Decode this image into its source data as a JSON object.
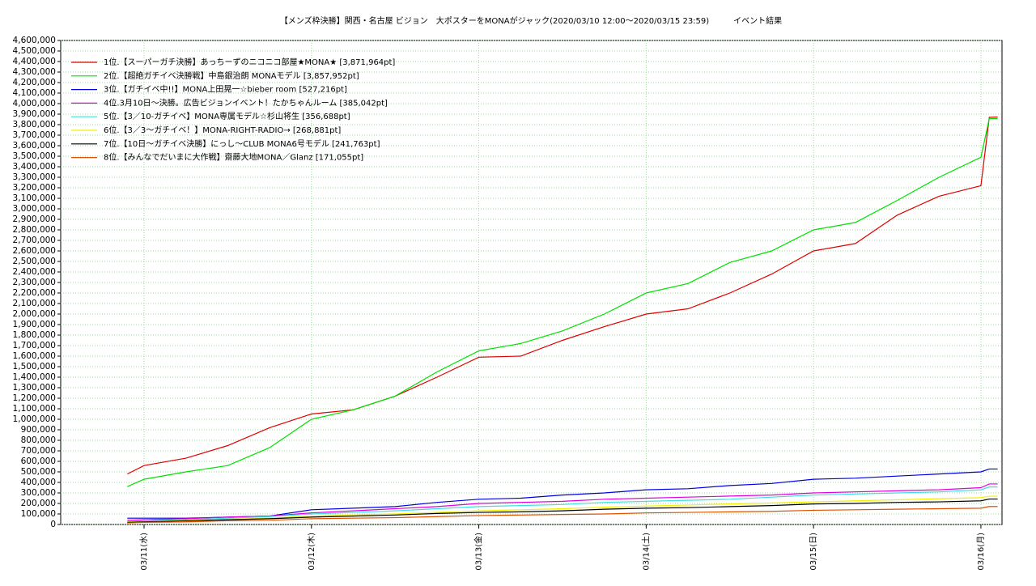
{
  "chart_data": {
    "type": "line",
    "title": "【メンズ枠決勝】関西・名古屋 ビジョン　大ポスターをMONAがジャック(2020/03/10 12:00〜2020/03/15 23:59)　　　イベント結果",
    "x": [
      0.9,
      1.0,
      1.25,
      1.5,
      1.75,
      2.0,
      2.25,
      2.5,
      2.75,
      3.0,
      3.25,
      3.5,
      3.75,
      4.0,
      4.25,
      4.5,
      4.75,
      5.0,
      5.25,
      5.5,
      5.75,
      6.0,
      6.05,
      6.1
    ],
    "xlim": [
      0.502,
      6.126
    ],
    "xticks": [
      {
        "value": 1,
        "label": "03/11(水)"
      },
      {
        "value": 2,
        "label": "03/12(木)"
      },
      {
        "value": 3,
        "label": "03/13(金)"
      },
      {
        "value": 4,
        "label": "03/14(土)"
      },
      {
        "value": 5,
        "label": "03/15(日)"
      },
      {
        "value": 6,
        "label": "03/16(月)"
      }
    ],
    "ylim": [
      0,
      4600000
    ],
    "yticks": [
      0,
      {
        "value": 100000,
        "label": "100,000"
      },
      {
        "value": 200000,
        "label": "200,000"
      },
      {
        "value": 300000,
        "label": "300,000"
      },
      {
        "value": 400000,
        "label": "400,000"
      },
      {
        "value": 500000,
        "label": "500,000"
      },
      {
        "value": 600000,
        "label": "600,000"
      },
      {
        "value": 700000,
        "label": "700,000"
      },
      {
        "value": 800000,
        "label": "800,000"
      },
      {
        "value": 900000,
        "label": "900,000"
      },
      {
        "value": 1000000,
        "label": "1,000,000"
      },
      {
        "value": 1100000,
        "label": "1,100,000"
      },
      {
        "value": 1200000,
        "label": "1,200,000"
      },
      {
        "value": 1300000,
        "label": "1,300,000"
      },
      {
        "value": 1400000,
        "label": "1,400,000"
      },
      {
        "value": 1500000,
        "label": "1,500,000"
      },
      {
        "value": 1600000,
        "label": "1,600,000"
      },
      {
        "value": 1700000,
        "label": "1,700,000"
      },
      {
        "value": 1800000,
        "label": "1,800,000"
      },
      {
        "value": 1900000,
        "label": "1,900,000"
      },
      {
        "value": 2000000,
        "label": "2,000,000"
      },
      {
        "value": 2100000,
        "label": "2,100,000"
      },
      {
        "value": 2200000,
        "label": "2,200,000"
      },
      {
        "value": 2300000,
        "label": "2,300,000"
      },
      {
        "value": 2400000,
        "label": "2,400,000"
      },
      {
        "value": 2500000,
        "label": "2,500,000"
      },
      {
        "value": 2600000,
        "label": "2,600,000"
      },
      {
        "value": 2700000,
        "label": "2,700,000"
      },
      {
        "value": 2800000,
        "label": "2,800,000"
      },
      {
        "value": 2900000,
        "label": "2,900,000"
      },
      {
        "value": 3000000,
        "label": "3,000,000"
      },
      {
        "value": 3100000,
        "label": "3,100,000"
      },
      {
        "value": 3200000,
        "label": "3,200,000"
      },
      {
        "value": 3300000,
        "label": "3,300,000"
      },
      {
        "value": 3400000,
        "label": "3,400,000"
      },
      {
        "value": 3500000,
        "label": "3,500,000"
      },
      {
        "value": 3600000,
        "label": "3,600,000"
      },
      {
        "value": 3700000,
        "label": "3,700,000"
      },
      {
        "value": 3800000,
        "label": "3,800,000"
      },
      {
        "value": 3900000,
        "label": "3,900,000"
      },
      {
        "value": 4000000,
        "label": "4,000,000"
      },
      {
        "value": 4100000,
        "label": "4,100,000"
      },
      {
        "value": 4200000,
        "label": "4,200,000"
      },
      {
        "value": 4300000,
        "label": "4,300,000"
      },
      {
        "value": 4400000,
        "label": "4,400,000"
      },
      {
        "value": 4500000,
        "label": "4,500,000"
      },
      {
        "value": 4600000,
        "label": "4,600,000"
      }
    ],
    "grid": true,
    "legend": "top-left",
    "series": [
      {
        "name": "1位.【スーパーガチ決勝】あっちーずのニコニコ部屋★MONA★ [3,871,964pt]",
        "color": "#e00000",
        "values": [
          480000,
          560000,
          630000,
          750000,
          920000,
          1050000,
          1090000,
          1220000,
          1400000,
          1590000,
          1600000,
          1750000,
          1880000,
          2000000,
          2050000,
          2200000,
          2380000,
          2600000,
          2670000,
          2940000,
          3120000,
          3220000,
          3870000,
          3871964
        ]
      },
      {
        "name": "2位.【超絶ガチイベ決勝戦】中島銀治朗 MONAモデル [3,857,952pt]",
        "color": "#00e000",
        "values": [
          360000,
          430000,
          500000,
          560000,
          730000,
          1000000,
          1090000,
          1220000,
          1450000,
          1650000,
          1720000,
          1840000,
          2000000,
          2200000,
          2290000,
          2490000,
          2600000,
          2800000,
          2870000,
          3080000,
          3300000,
          3490000,
          3857952,
          3857952
        ]
      },
      {
        "name": "3位.【ガチイベ中!!】MONA上田晃一☆bieber room [527,216pt]",
        "color": "#0000e0",
        "values": [
          60000,
          60000,
          60000,
          70000,
          80000,
          140000,
          155000,
          170000,
          210000,
          240000,
          250000,
          280000,
          300000,
          330000,
          340000,
          370000,
          390000,
          430000,
          440000,
          460000,
          480000,
          500000,
          527216,
          527216
        ]
      },
      {
        "name": "4位.3月10日〜決勝。広告ビジョンイベント！たかちゃんルーム [385,042pt]",
        "color": "#e000e0",
        "values": [
          40000,
          45000,
          55000,
          70000,
          80000,
          110000,
          130000,
          150000,
          170000,
          200000,
          210000,
          220000,
          240000,
          250000,
          260000,
          270000,
          280000,
          300000,
          310000,
          320000,
          330000,
          350000,
          385042,
          385042
        ]
      },
      {
        "name": "5位.【3／10-ガチイベ】MONA専属モデル☆杉山将生 [356,688pt]",
        "color": "#40e0e0",
        "values": [
          30000,
          35000,
          45000,
          60000,
          75000,
          100000,
          115000,
          130000,
          150000,
          170000,
          180000,
          190000,
          210000,
          220000,
          230000,
          240000,
          260000,
          280000,
          290000,
          300000,
          310000,
          330000,
          356688,
          356688
        ]
      },
      {
        "name": "6位.【3／3〜ガチイベ！】MONA-RIGHT-RADIO→ [268,881pt]",
        "color": "#f0f000",
        "values": [
          25000,
          30000,
          40000,
          50000,
          60000,
          80000,
          90000,
          100000,
          115000,
          130000,
          140000,
          150000,
          165000,
          175000,
          185000,
          195000,
          205000,
          215000,
          225000,
          235000,
          245000,
          255000,
          268881,
          268881
        ]
      },
      {
        "name": "7位.【10日〜ガチイベ決勝】にっし〜CLUB MONA6号モデル [241,763pt]",
        "color": "#000000",
        "values": [
          20000,
          25000,
          35000,
          45000,
          55000,
          70000,
          80000,
          90000,
          105000,
          115000,
          120000,
          130000,
          145000,
          155000,
          160000,
          170000,
          180000,
          195000,
          200000,
          210000,
          215000,
          225000,
          241763,
          241763
        ]
      },
      {
        "name": "8位.【みんなでだいまに大作戦】齋藤大地MONA／Glanz [171,055pt]",
        "color": "#e05000",
        "values": [
          15000,
          20000,
          25000,
          35000,
          40000,
          55000,
          60000,
          65000,
          75000,
          85000,
          90000,
          95000,
          100000,
          110000,
          115000,
          120000,
          125000,
          135000,
          140000,
          145000,
          150000,
          155000,
          171055,
          171055
        ]
      }
    ]
  }
}
